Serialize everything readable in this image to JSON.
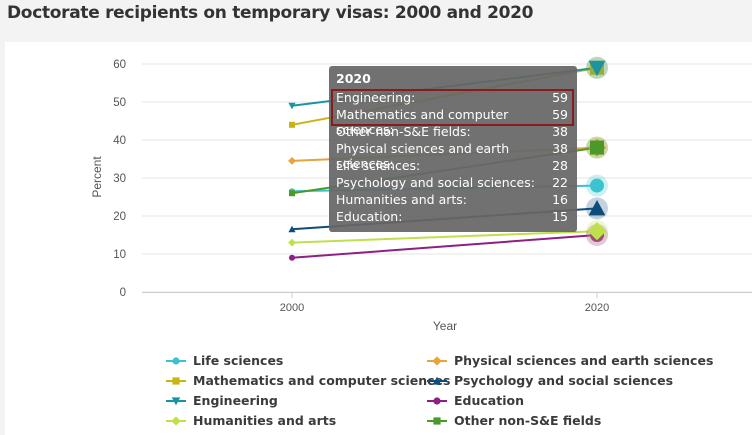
{
  "page": {
    "title": "Doctorate recipients on temporary visas: 2000 and 2020"
  },
  "chart_data": {
    "type": "line",
    "title": "Doctorate recipients on temporary visas: 2000 and 2020",
    "xlabel": "Year",
    "ylabel": "Percent",
    "categories": [
      "2000",
      "2020"
    ],
    "x_tick_labels": [
      "2000",
      "2020"
    ],
    "ylim": [
      0,
      60
    ],
    "yticks": [
      0,
      10,
      20,
      30,
      40,
      50,
      60
    ],
    "y_tick_labels": [
      "0",
      "10",
      "20",
      "30",
      "40",
      "50",
      "60"
    ],
    "grid": true,
    "legend_position": "bottom",
    "series": [
      {
        "name": "Life sciences",
        "values": [
          26.5,
          28
        ],
        "color": "#3cc3cf",
        "marker": "circle"
      },
      {
        "name": "Physical sciences and earth sciences",
        "values": [
          34.5,
          38
        ],
        "color": "#e8a33d",
        "marker": "diamond"
      },
      {
        "name": "Mathematics and computer sciences",
        "values": [
          44,
          59
        ],
        "color": "#c9b414",
        "marker": "square"
      },
      {
        "name": "Psychology and social sciences",
        "values": [
          16.5,
          22
        ],
        "color": "#0e4d7a",
        "marker": "triangle"
      },
      {
        "name": "Engineering",
        "values": [
          49,
          59
        ],
        "color": "#1a94a0",
        "marker": "triangle-down"
      },
      {
        "name": "Education",
        "values": [
          9,
          15
        ],
        "color": "#8e1f83",
        "marker": "circle"
      },
      {
        "name": "Humanities and arts",
        "values": [
          13,
          16
        ],
        "color": "#bfe04a",
        "marker": "diamond"
      },
      {
        "name": "Other non-S&E fields",
        "values": [
          26,
          38
        ],
        "color": "#4a9a2a",
        "marker": "square"
      }
    ],
    "tooltip": {
      "title": "2020",
      "rows": [
        {
          "label": "Engineering:",
          "value": "59"
        },
        {
          "label": "Mathematics and computer sciences:",
          "value": "59"
        },
        {
          "label": "Other non-S&E fields:",
          "value": "38"
        },
        {
          "label": "Physical sciences and earth sciences:",
          "value": "38"
        },
        {
          "label": "Life sciences:",
          "value": "28"
        },
        {
          "label": "Psychology and social sciences:",
          "value": "22"
        },
        {
          "label": "Humanities and arts:",
          "value": "16"
        },
        {
          "label": "Education:",
          "value": "15"
        }
      ],
      "highlighted_rows": 2
    }
  }
}
